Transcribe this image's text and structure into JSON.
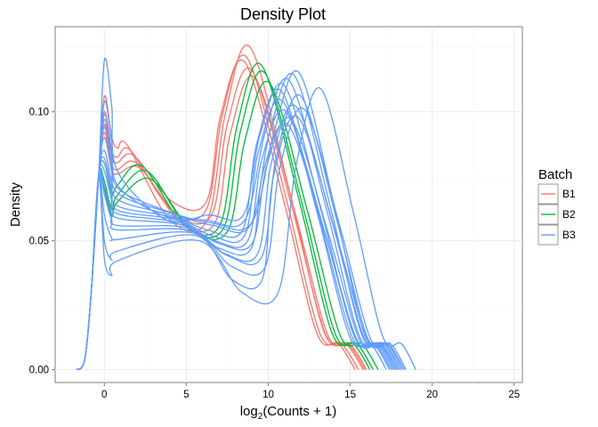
{
  "chart_data": {
    "type": "line",
    "title": "Density Plot",
    "xlabel": {
      "main": "log",
      "sub": "2",
      "rest": "(Counts + 1)"
    },
    "ylabel": "Density",
    "xlim": [
      -3,
      25.5
    ],
    "ylim": [
      -0.005,
      0.133
    ],
    "x_ticks": [
      0,
      5,
      10,
      15,
      20,
      25
    ],
    "x_tick_labels": [
      "0",
      "5",
      "10",
      "15",
      "20",
      "25"
    ],
    "y_ticks": [
      0.0,
      0.05,
      0.1
    ],
    "y_tick_labels": [
      "0.00",
      "0.05",
      "0.10"
    ],
    "grid": true,
    "legend": {
      "title": "Batch",
      "position": "right",
      "entries": [
        {
          "label": "B1",
          "color": "#F8766D"
        },
        {
          "label": "B2",
          "color": "#00BA38"
        },
        {
          "label": "B3",
          "color": "#619CFF"
        }
      ]
    },
    "series": [
      {
        "batch": "B1",
        "color": "#F8766D",
        "peak0": 0.106,
        "peak1": 0.087,
        "x1": 1.4,
        "trough": 0.058,
        "peak2": 0.125,
        "x2": 8.9,
        "end": 15.8
      },
      {
        "batch": "B1",
        "color": "#F8766D",
        "peak0": 0.1,
        "peak1": 0.085,
        "x1": 1.6,
        "trough": 0.062,
        "peak2": 0.121,
        "x2": 8.7,
        "end": 15.5
      },
      {
        "batch": "B1",
        "color": "#F8766D",
        "peak0": 0.097,
        "peak1": 0.083,
        "x1": 1.8,
        "trough": 0.065,
        "peak2": 0.119,
        "x2": 8.6,
        "end": 15.3
      },
      {
        "batch": "B1",
        "color": "#F8766D",
        "peak0": 0.094,
        "peak1": 0.08,
        "x1": 2.0,
        "trough": 0.06,
        "peak2": 0.116,
        "x2": 9.0,
        "end": 15.9
      },
      {
        "batch": "B1",
        "color": "#F8766D",
        "peak0": 0.092,
        "peak1": 0.078,
        "x1": 2.2,
        "trough": 0.057,
        "peak2": 0.113,
        "x2": 9.2,
        "end": 16.0
      },
      {
        "batch": "B2",
        "color": "#00BA38",
        "peak0": 0.08,
        "peak1": 0.079,
        "x1": 2.3,
        "trough": 0.056,
        "peak2": 0.118,
        "x2": 9.6,
        "end": 16.2
      },
      {
        "batch": "B2",
        "color": "#00BA38",
        "peak0": 0.073,
        "peak1": 0.077,
        "x1": 2.6,
        "trough": 0.055,
        "peak2": 0.115,
        "x2": 9.8,
        "end": 16.4
      },
      {
        "batch": "B2",
        "color": "#00BA38",
        "peak0": 0.07,
        "peak1": 0.074,
        "x1": 2.8,
        "trough": 0.054,
        "peak2": 0.111,
        "x2": 10.1,
        "end": 16.7
      },
      {
        "batch": "B3",
        "color": "#619CFF",
        "peak0": 0.12,
        "peak1": 0.058,
        "x1": 3.8,
        "trough": 0.06,
        "peak2": 0.11,
        "x2": 11.0,
        "end": 17.5
      },
      {
        "batch": "B3",
        "color": "#619CFF",
        "peak0": 0.104,
        "peak1": 0.06,
        "x1": 3.5,
        "trough": 0.058,
        "peak2": 0.112,
        "x2": 11.3,
        "end": 17.8
      },
      {
        "batch": "B3",
        "color": "#619CFF",
        "peak0": 0.099,
        "peak1": 0.062,
        "x1": 3.6,
        "trough": 0.057,
        "peak2": 0.115,
        "x2": 11.9,
        "end": 18.0
      },
      {
        "batch": "B3",
        "color": "#619CFF",
        "peak0": 0.095,
        "peak1": 0.061,
        "x1": 3.9,
        "trough": 0.056,
        "peak2": 0.114,
        "x2": 11.6,
        "end": 17.9
      },
      {
        "batch": "B3",
        "color": "#619CFF",
        "peak0": 0.09,
        "peak1": 0.06,
        "x1": 4.0,
        "trough": 0.054,
        "peak2": 0.108,
        "x2": 10.8,
        "end": 17.2
      },
      {
        "batch": "B3",
        "color": "#619CFF",
        "peak0": 0.085,
        "peak1": 0.059,
        "x1": 4.2,
        "trough": 0.052,
        "peak2": 0.104,
        "x2": 10.9,
        "end": 17.4
      },
      {
        "batch": "B3",
        "color": "#619CFF",
        "peak0": 0.082,
        "peak1": 0.058,
        "x1": 4.4,
        "trough": 0.05,
        "peak2": 0.1,
        "x2": 11.1,
        "end": 17.6
      },
      {
        "batch": "B3",
        "color": "#619CFF",
        "peak0": 0.08,
        "peak1": 0.057,
        "x1": 4.6,
        "trough": 0.049,
        "peak2": 0.097,
        "x2": 11.4,
        "end": 17.8
      },
      {
        "batch": "B3",
        "color": "#619CFF",
        "peak0": 0.077,
        "peak1": 0.056,
        "x1": 4.8,
        "trough": 0.047,
        "peak2": 0.095,
        "x2": 11.2,
        "end": 17.7
      },
      {
        "batch": "B3",
        "color": "#619CFF",
        "peak0": 0.071,
        "peak1": 0.055,
        "x1": 5.0,
        "trough": 0.045,
        "peak2": 0.102,
        "x2": 11.7,
        "end": 18.1
      },
      {
        "batch": "B3",
        "color": "#619CFF",
        "peak0": 0.068,
        "peak1": 0.054,
        "x1": 5.2,
        "trough": 0.044,
        "peak2": 0.106,
        "x2": 12.0,
        "end": 18.2
      },
      {
        "batch": "B3",
        "color": "#619CFF",
        "peak0": 0.06,
        "peak1": 0.053,
        "x1": 5.4,
        "trough": 0.04,
        "peak2": 0.101,
        "x2": 12.2,
        "end": 18.4
      },
      {
        "batch": "B3",
        "color": "#619CFF",
        "peak0": 0.05,
        "peak1": 0.052,
        "x1": 5.6,
        "trough": 0.035,
        "peak2": 0.098,
        "x2": 11.8,
        "end": 18.3
      },
      {
        "batch": "B3",
        "color": "#619CFF",
        "peak0": 0.043,
        "peak1": 0.05,
        "x1": 5.8,
        "trough": 0.03,
        "peak2": 0.109,
        "x2": 13.2,
        "end": 19.0
      }
    ]
  }
}
